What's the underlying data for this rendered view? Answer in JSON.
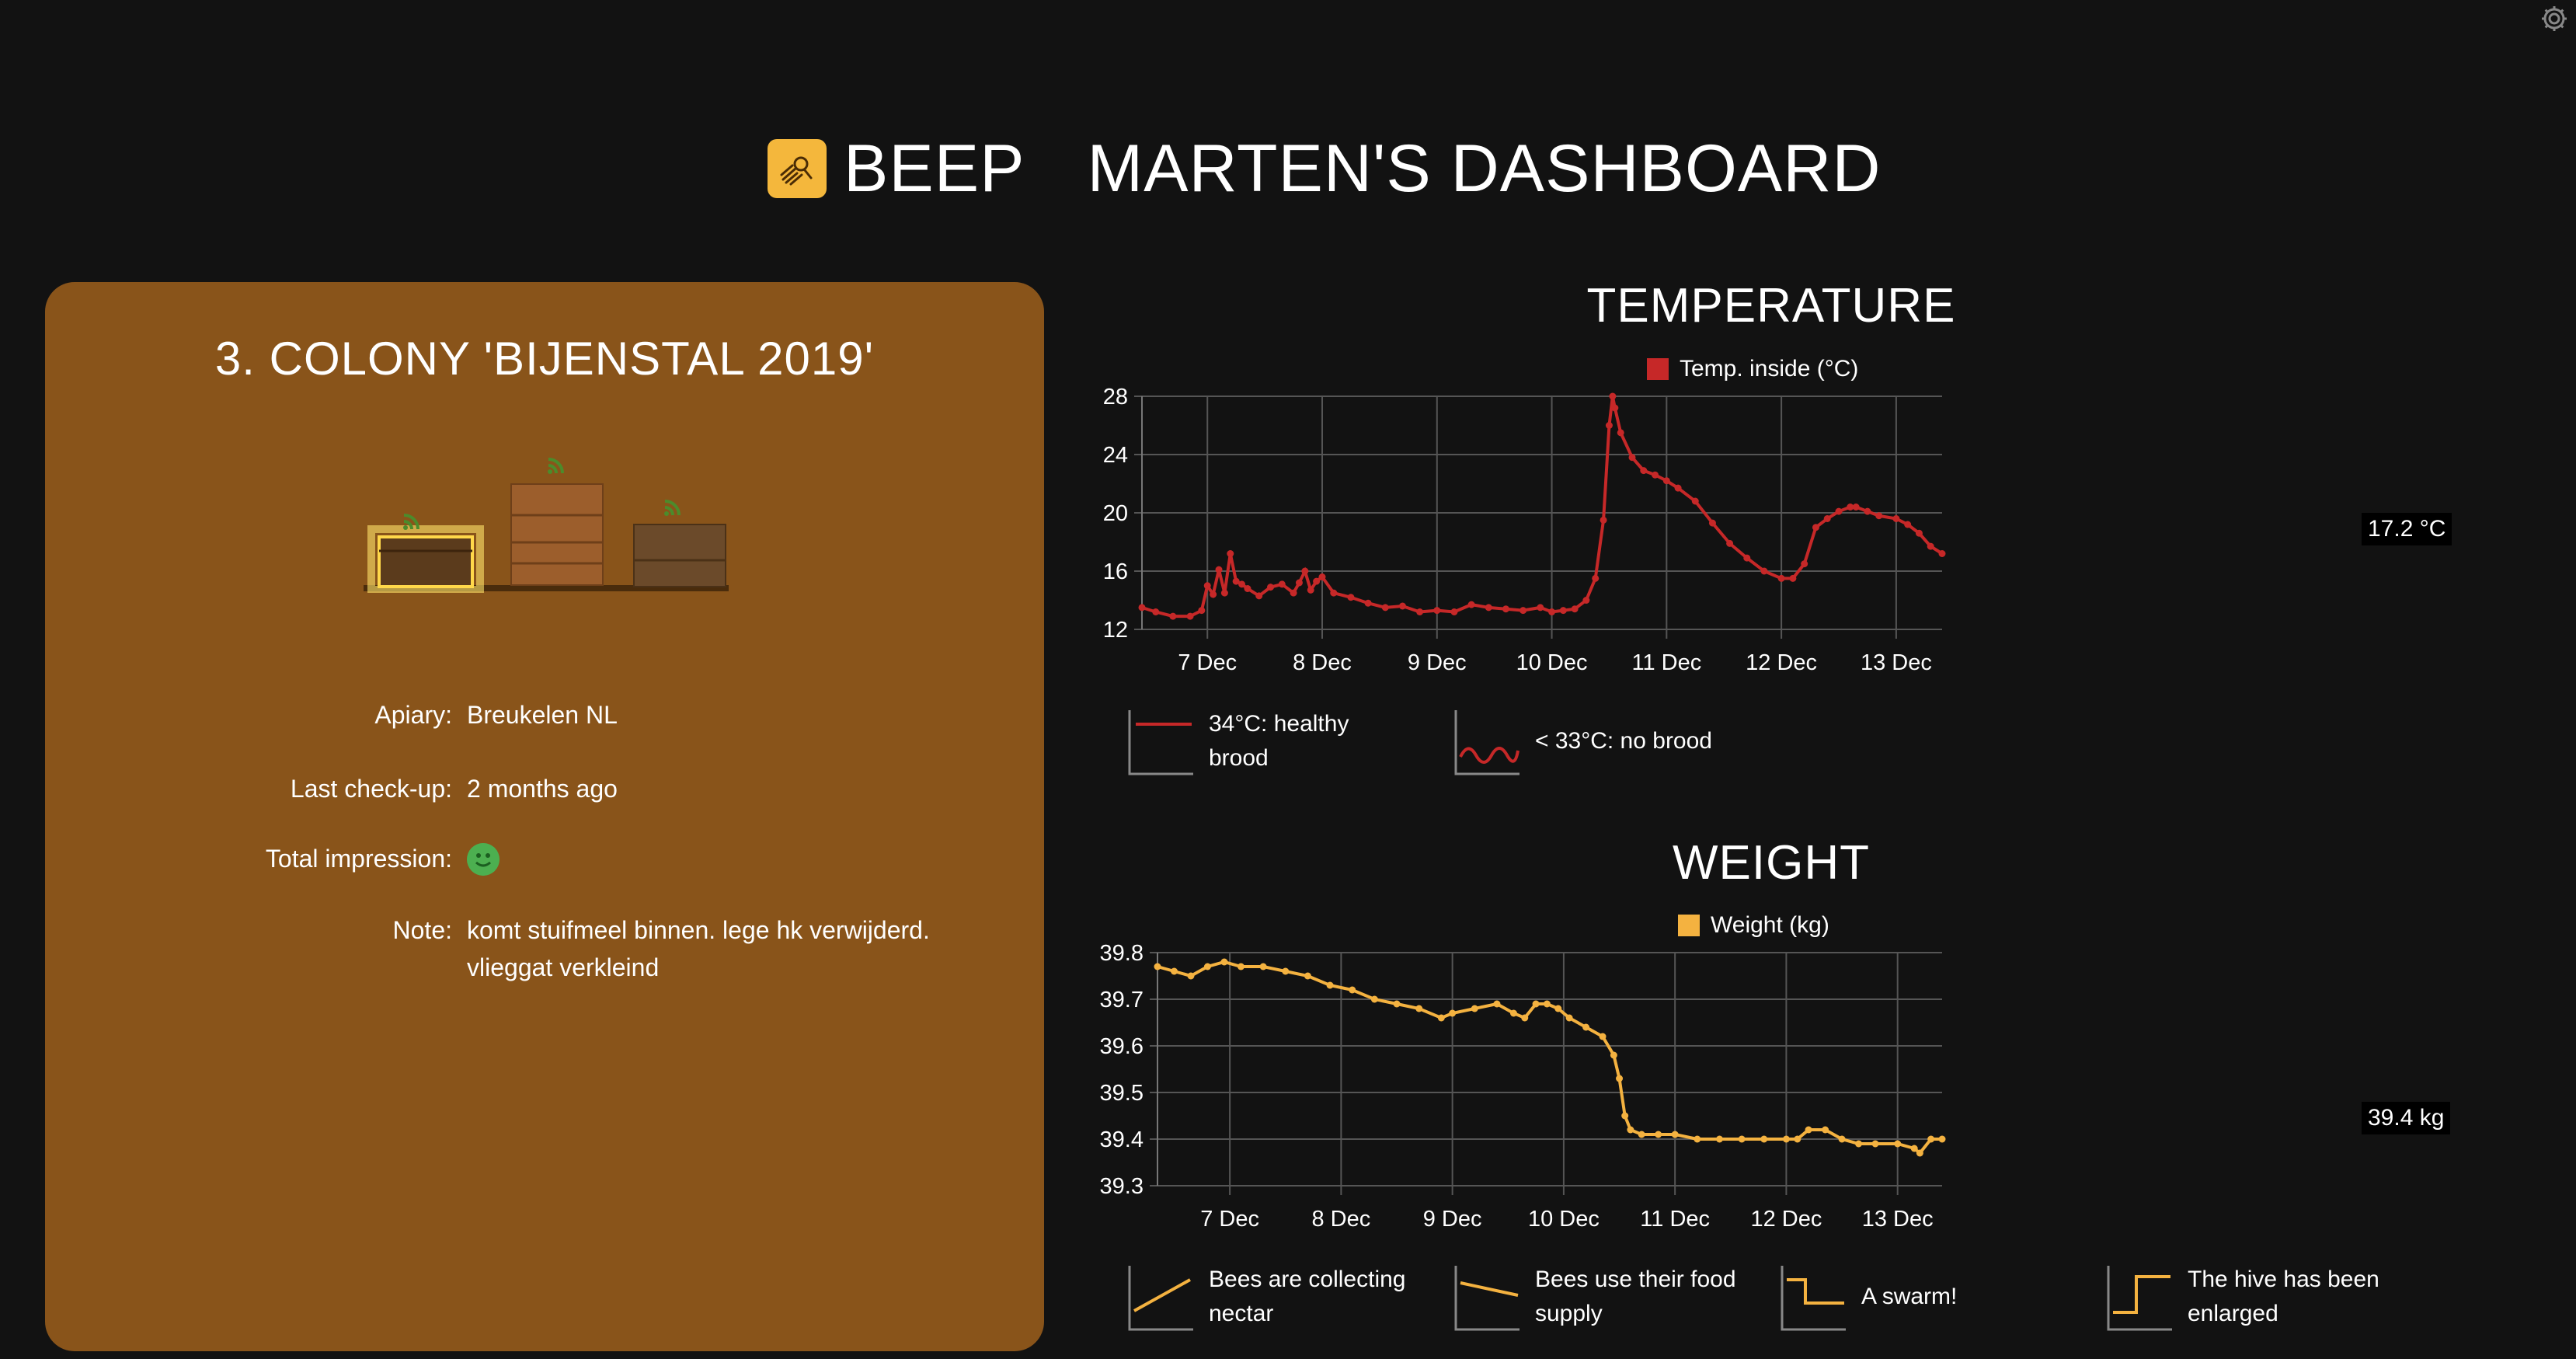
{
  "app": {
    "brand": "BEEP",
    "dashboard_title": "MARTEN'S DASHBOARD"
  },
  "colony": {
    "title": "3. COLONY 'BIJENSTAL 2019'",
    "rows": [
      {
        "label": "Apiary:",
        "value": "Breukelen NL"
      },
      {
        "label": "Last check-up:",
        "value": "2 months ago"
      },
      {
        "label": "Total impression:",
        "value": ""
      },
      {
        "label": "Note:",
        "value": "komt stuifmeel binnen. lege hk verwijderd. vlieggat verkleind"
      }
    ],
    "impression": "happy-face-icon"
  },
  "temperature": {
    "title": "TEMPERATURE",
    "last_value_label": "17.2 °C",
    "hints": [
      {
        "text": "34°C: healthy brood",
        "icon": "healthy-brood-icon"
      },
      {
        "text": "< 33°C: no brood",
        "icon": "no-brood-icon"
      }
    ]
  },
  "weight": {
    "title": "WEIGHT",
    "last_value_label": "39.4 kg",
    "hints": [
      {
        "text": "Bees are collecting nectar",
        "icon": "collecting-nectar-icon"
      },
      {
        "text": "Bees use their food supply",
        "icon": "food-supply-icon"
      },
      {
        "text": "A swarm!",
        "icon": "swarm-icon"
      },
      {
        "text": "The hive has been enlarged",
        "icon": "hive-enlarged-icon"
      }
    ]
  },
  "chart_data": [
    {
      "type": "line",
      "title": "TEMPERATURE",
      "xlabel": "",
      "ylabel": "",
      "x_ticks": [
        "7 Dec",
        "8 Dec",
        "9 Dec",
        "10 Dec",
        "11 Dec",
        "12 Dec",
        "13 Dec"
      ],
      "xlim": [
        6.43,
        13.4
      ],
      "ylim": [
        12,
        28
      ],
      "y_ticks": [
        12,
        16,
        20,
        24,
        28
      ],
      "grid": true,
      "legend": "top",
      "color": "#c62828",
      "series": [
        {
          "name": "Temp. inside (°C)",
          "x": [
            6.43,
            6.55,
            6.7,
            6.85,
            6.95,
            7.0,
            7.05,
            7.1,
            7.15,
            7.2,
            7.25,
            7.3,
            7.35,
            7.45,
            7.55,
            7.65,
            7.75,
            7.8,
            7.85,
            7.9,
            7.95,
            8.0,
            8.1,
            8.25,
            8.4,
            8.55,
            8.7,
            8.85,
            9.0,
            9.15,
            9.3,
            9.45,
            9.6,
            9.75,
            9.9,
            10.0,
            10.1,
            10.2,
            10.3,
            10.38,
            10.45,
            10.5,
            10.53,
            10.55,
            10.6,
            10.7,
            10.8,
            10.9,
            11.0,
            11.1,
            11.25,
            11.4,
            11.55,
            11.7,
            11.85,
            12.0,
            12.1,
            12.2,
            12.3,
            12.4,
            12.5,
            12.6,
            12.65,
            12.75,
            12.85,
            13.0,
            13.1,
            13.2,
            13.3,
            13.4
          ],
          "y": [
            13.5,
            13.2,
            12.9,
            12.9,
            13.3,
            15.0,
            14.4,
            16.1,
            14.5,
            17.2,
            15.3,
            15.1,
            14.8,
            14.3,
            14.9,
            15.1,
            14.5,
            15.2,
            16.0,
            14.7,
            15.3,
            15.6,
            14.5,
            14.2,
            13.8,
            13.5,
            13.6,
            13.2,
            13.3,
            13.2,
            13.7,
            13.5,
            13.4,
            13.3,
            13.5,
            13.2,
            13.3,
            13.4,
            14.0,
            15.5,
            19.5,
            26.0,
            28.0,
            27.2,
            25.5,
            23.8,
            22.9,
            22.6,
            22.2,
            21.7,
            20.8,
            19.3,
            17.9,
            16.9,
            16.0,
            15.5,
            15.5,
            16.5,
            19.0,
            19.6,
            20.1,
            20.4,
            20.4,
            20.1,
            19.8,
            19.6,
            19.2,
            18.6,
            17.7,
            17.2
          ]
        }
      ]
    },
    {
      "type": "line",
      "title": "WEIGHT",
      "xlabel": "",
      "ylabel": "",
      "x_ticks": [
        "7 Dec",
        "8 Dec",
        "9 Dec",
        "10 Dec",
        "11 Dec",
        "12 Dec",
        "13 Dec"
      ],
      "xlim": [
        6.35,
        13.4
      ],
      "ylim": [
        39.3,
        39.8
      ],
      "y_ticks": [
        39.3,
        39.4,
        39.5,
        39.6,
        39.7,
        39.8
      ],
      "grid": true,
      "legend": "top",
      "color": "#f4b240",
      "series": [
        {
          "name": "Weight (kg)",
          "x": [
            6.35,
            6.5,
            6.65,
            6.8,
            6.95,
            7.1,
            7.3,
            7.5,
            7.7,
            7.9,
            8.1,
            8.3,
            8.5,
            8.7,
            8.9,
            9.0,
            9.2,
            9.4,
            9.55,
            9.65,
            9.75,
            9.85,
            9.95,
            10.05,
            10.2,
            10.35,
            10.45,
            10.5,
            10.55,
            10.6,
            10.7,
            10.85,
            11.0,
            11.2,
            11.4,
            11.6,
            11.8,
            12.0,
            12.1,
            12.2,
            12.35,
            12.5,
            12.65,
            12.8,
            13.0,
            13.15,
            13.2,
            13.3,
            13.4
          ],
          "y": [
            39.77,
            39.76,
            39.75,
            39.77,
            39.78,
            39.77,
            39.77,
            39.76,
            39.75,
            39.73,
            39.72,
            39.7,
            39.69,
            39.68,
            39.66,
            39.67,
            39.68,
            39.69,
            39.67,
            39.66,
            39.69,
            39.69,
            39.68,
            39.66,
            39.64,
            39.62,
            39.58,
            39.53,
            39.45,
            39.42,
            39.41,
            39.41,
            39.41,
            39.4,
            39.4,
            39.4,
            39.4,
            39.4,
            39.4,
            39.42,
            39.42,
            39.4,
            39.39,
            39.39,
            39.39,
            39.38,
            39.37,
            39.4,
            39.4
          ]
        }
      ]
    }
  ],
  "colors": {
    "background": "#121212",
    "card": "#89541a",
    "temp_line": "#c62828",
    "weight_line": "#f4b240",
    "brand_yellow": "#f4b73c",
    "signal_green": "#4caf50"
  }
}
